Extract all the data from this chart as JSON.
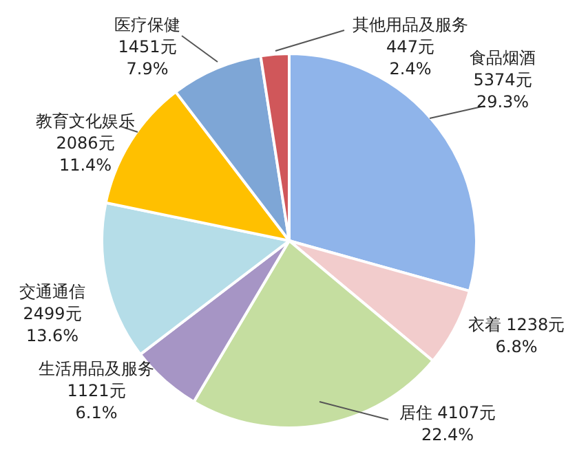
{
  "chart_data": {
    "type": "pie",
    "categories": [
      "食品烟酒",
      "衣着",
      "居住",
      "生活用品及服务",
      "交通通信",
      "教育文化娱乐",
      "医疗保健",
      "其他用品及服务"
    ],
    "values": [
      5374,
      1238,
      4107,
      1121,
      2499,
      2086,
      1451,
      447
    ],
    "value_labels": [
      "5374元\n29.3%",
      "1238元\n6.8%",
      "4107元\n22.4%",
      "1121元\n6.1%",
      "2499元\n13.6%",
      "2086元\n11.4%",
      "1451元\n7.9%",
      "447元\n2.4%"
    ],
    "colors": [
      "#8fb4ea",
      "#f2cccc",
      "#c5dea0",
      "#a695c5",
      "#b5dde8",
      "#ffc000",
      "#7ea6d6",
      "#d0575a"
    ],
    "legend": false
  }
}
